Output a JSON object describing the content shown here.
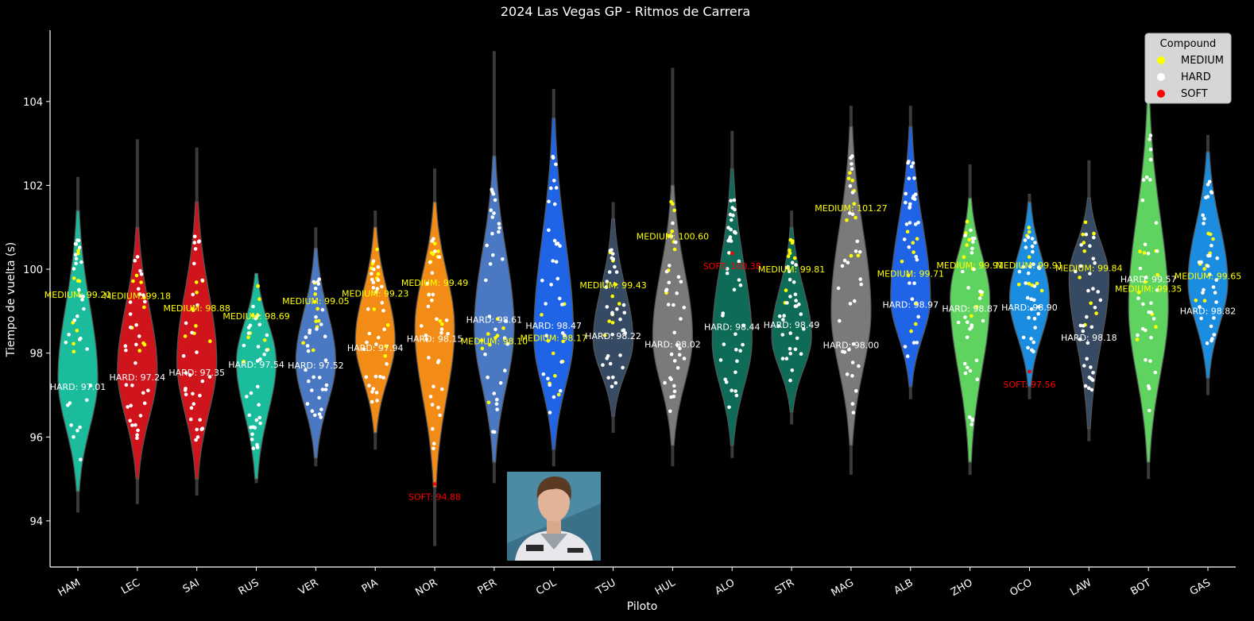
{
  "chart_data": {
    "type": "violin",
    "title": "2024 Las Vegas GP - Ritmos de Carrera",
    "xlabel": "Piloto",
    "ylabel": "Tiempo de vuelta (s)",
    "ylim": [
      92.9,
      105.7
    ],
    "yticks": [
      94,
      96,
      98,
      100,
      102,
      104
    ],
    "grid": false,
    "legend": {
      "title": "Compound",
      "placement": "top-right",
      "entries": [
        {
          "label": "MEDIUM",
          "color": "#ffff00"
        },
        {
          "label": "HARD",
          "color": "#ffffff"
        },
        {
          "label": "SOFT",
          "color": "#ff0000"
        }
      ]
    },
    "drivers": [
      {
        "code": "HAM",
        "color": "#1abc9c",
        "median": 97.4,
        "lo": 94.7,
        "hi": 101.4,
        "wlo": 94.2,
        "whi": 102.2,
        "annotations": [
          {
            "text": "MEDIUM: 99.21",
            "compound": "MEDIUM",
            "y": 99.21
          },
          {
            "text": "HARD: 97.01",
            "compound": "HARD",
            "y": 97.01
          }
        ]
      },
      {
        "code": "LEC",
        "color": "#d0141c",
        "median": 97.6,
        "lo": 95.0,
        "hi": 101.0,
        "wlo": 94.4,
        "whi": 103.1,
        "annotations": [
          {
            "text": "MEDIUM: 99.18",
            "compound": "MEDIUM",
            "y": 99.18
          },
          {
            "text": "HARD: 97.24",
            "compound": "HARD",
            "y": 97.24
          }
        ]
      },
      {
        "code": "SAI",
        "color": "#d0141c",
        "median": 97.8,
        "lo": 95.0,
        "hi": 101.6,
        "wlo": 94.6,
        "whi": 102.9,
        "annotations": [
          {
            "text": "MEDIUM: 98.88",
            "compound": "MEDIUM",
            "y": 98.88
          },
          {
            "text": "HARD: 97.35",
            "compound": "HARD",
            "y": 97.35
          }
        ]
      },
      {
        "code": "RUS",
        "color": "#1abc9c",
        "median": 97.8,
        "lo": 95.0,
        "hi": 99.9,
        "wlo": 94.9,
        "whi": 99.9,
        "annotations": [
          {
            "text": "MEDIUM: 98.69",
            "compound": "MEDIUM",
            "y": 98.69
          },
          {
            "text": "HARD: 97.54",
            "compound": "HARD",
            "y": 97.54
          }
        ]
      },
      {
        "code": "VER",
        "color": "#4a78c2",
        "median": 97.8,
        "lo": 95.5,
        "hi": 100.5,
        "wlo": 95.3,
        "whi": 101.0,
        "annotations": [
          {
            "text": "MEDIUM: 99.05",
            "compound": "MEDIUM",
            "y": 99.05
          },
          {
            "text": "HARD: 97.52",
            "compound": "HARD",
            "y": 97.52
          }
        ]
      },
      {
        "code": "PIA",
        "color": "#f28c16",
        "median": 98.3,
        "lo": 96.1,
        "hi": 101.0,
        "wlo": 95.7,
        "whi": 101.4,
        "annotations": [
          {
            "text": "MEDIUM: 99.23",
            "compound": "MEDIUM",
            "y": 99.23
          },
          {
            "text": "HARD: 97.94",
            "compound": "HARD",
            "y": 97.94
          }
        ]
      },
      {
        "code": "NOR",
        "color": "#f28c16",
        "median": 98.6,
        "lo": 94.8,
        "hi": 101.6,
        "wlo": 93.4,
        "whi": 102.4,
        "annotations": [
          {
            "text": "MEDIUM: 99.49",
            "compound": "MEDIUM",
            "y": 99.49
          },
          {
            "text": "HARD: 98.15",
            "compound": "HARD",
            "y": 98.15
          },
          {
            "text": "SOFT: 94.88",
            "compound": "SOFT",
            "y": 94.88
          }
        ]
      },
      {
        "code": "PER",
        "color": "#4a78c2",
        "median": 98.6,
        "lo": 95.4,
        "hi": 102.7,
        "wlo": 94.9,
        "whi": 105.2,
        "annotations": [
          {
            "text": "HARD: 98.61",
            "compound": "HARD",
            "y": 98.61
          },
          {
            "text": "MEDIUM: 98.10",
            "compound": "MEDIUM",
            "y": 98.1
          }
        ]
      },
      {
        "code": "COL",
        "color": "#1f63e6",
        "median": 98.4,
        "lo": 95.7,
        "hi": 103.6,
        "wlo": 95.3,
        "whi": 104.3,
        "annotations": [
          {
            "text": "HARD: 98.47",
            "compound": "HARD",
            "y": 98.47
          },
          {
            "text": "MEDIUM: 98.17",
            "compound": "MEDIUM",
            "y": 98.17
          }
        ]
      },
      {
        "code": "TSU",
        "color": "#374a63",
        "median": 98.3,
        "lo": 96.5,
        "hi": 101.2,
        "wlo": 96.1,
        "whi": 101.6,
        "annotations": [
          {
            "text": "MEDIUM: 99.43",
            "compound": "MEDIUM",
            "y": 99.43
          },
          {
            "text": "HARD: 98.22",
            "compound": "HARD",
            "y": 98.22
          }
        ]
      },
      {
        "code": "HUL",
        "color": "#7a7a7a",
        "median": 98.4,
        "lo": 95.8,
        "hi": 102.0,
        "wlo": 95.3,
        "whi": 104.8,
        "annotations": [
          {
            "text": "MEDIUM: 100.60",
            "compound": "MEDIUM",
            "y": 100.6
          },
          {
            "text": "HARD: 98.02",
            "compound": "HARD",
            "y": 98.02
          }
        ]
      },
      {
        "code": "ALO",
        "color": "#0d6b57",
        "median": 98.3,
        "lo": 95.8,
        "hi": 102.4,
        "wlo": 95.5,
        "whi": 103.3,
        "annotations": [
          {
            "text": "SOFT: 100.38",
            "compound": "SOFT",
            "y": 100.38
          },
          {
            "text": "HARD: 98.44",
            "compound": "HARD",
            "y": 98.44
          }
        ]
      },
      {
        "code": "STR",
        "color": "#0d6b57",
        "median": 98.4,
        "lo": 96.6,
        "hi": 101.0,
        "wlo": 96.3,
        "whi": 101.4,
        "annotations": [
          {
            "text": "MEDIUM: 99.81",
            "compound": "MEDIUM",
            "y": 99.81
          },
          {
            "text": "HARD: 98.49",
            "compound": "HARD",
            "y": 98.49
          }
        ]
      },
      {
        "code": "MAG",
        "color": "#7a7a7a",
        "median": 99.0,
        "lo": 95.8,
        "hi": 103.4,
        "wlo": 95.1,
        "whi": 103.9,
        "annotations": [
          {
            "text": "MEDIUM: 101.27",
            "compound": "MEDIUM",
            "y": 101.27
          },
          {
            "text": "HARD: 98.00",
            "compound": "HARD",
            "y": 98.0
          }
        ]
      },
      {
        "code": "ALB",
        "color": "#1f63e6",
        "median": 99.3,
        "lo": 97.2,
        "hi": 103.4,
        "wlo": 96.9,
        "whi": 103.9,
        "annotations": [
          {
            "text": "HARD: 98.97",
            "compound": "HARD",
            "y": 98.97
          },
          {
            "text": "MEDIUM: 99.71",
            "compound": "MEDIUM",
            "y": 99.71
          }
        ]
      },
      {
        "code": "ZHO",
        "color": "#5fd35f",
        "median": 99.3,
        "lo": 95.4,
        "hi": 101.7,
        "wlo": 95.1,
        "whi": 102.5,
        "annotations": [
          {
            "text": "MEDIUM: 99.91",
            "compound": "MEDIUM",
            "y": 99.91
          },
          {
            "text": "HARD: 98.87",
            "compound": "HARD",
            "y": 98.87
          }
        ]
      },
      {
        "code": "OCO",
        "color": "#1b8de0",
        "median": 99.3,
        "lo": 97.2,
        "hi": 101.6,
        "wlo": 96.9,
        "whi": 101.8,
        "annotations": [
          {
            "text": "MEDIUM: 99.91",
            "compound": "MEDIUM",
            "y": 99.91
          },
          {
            "text": "HARD: 98.90",
            "compound": "HARD",
            "y": 98.9
          },
          {
            "text": "SOFT: 97.56",
            "compound": "SOFT",
            "y": 97.56
          }
        ]
      },
      {
        "code": "LAW",
        "color": "#374a63",
        "median": 99.8,
        "lo": 96.2,
        "hi": 101.7,
        "wlo": 95.9,
        "whi": 102.6,
        "annotations": [
          {
            "text": "HARD: 98.18",
            "compound": "HARD",
            "y": 98.18
          },
          {
            "text": "MEDIUM: 99.84",
            "compound": "MEDIUM",
            "y": 99.84
          }
        ]
      },
      {
        "code": "BOT",
        "color": "#5fd35f",
        "median": 99.1,
        "lo": 95.4,
        "hi": 104.0,
        "wlo": 95.0,
        "whi": 104.2,
        "annotations": [
          {
            "text": "HARD: 99.57",
            "compound": "HARD",
            "y": 99.57
          },
          {
            "text": "MEDIUM: 99.35",
            "compound": "MEDIUM",
            "y": 99.35
          }
        ]
      },
      {
        "code": "GAS",
        "color": "#1b8de0",
        "median": 99.7,
        "lo": 97.4,
        "hi": 102.8,
        "wlo": 97.0,
        "whi": 103.2,
        "annotations": [
          {
            "text": "MEDIUM: 99.65",
            "compound": "MEDIUM",
            "y": 99.65
          },
          {
            "text": "HARD: 98.82",
            "compound": "HARD",
            "y": 98.82
          }
        ]
      }
    ]
  }
}
